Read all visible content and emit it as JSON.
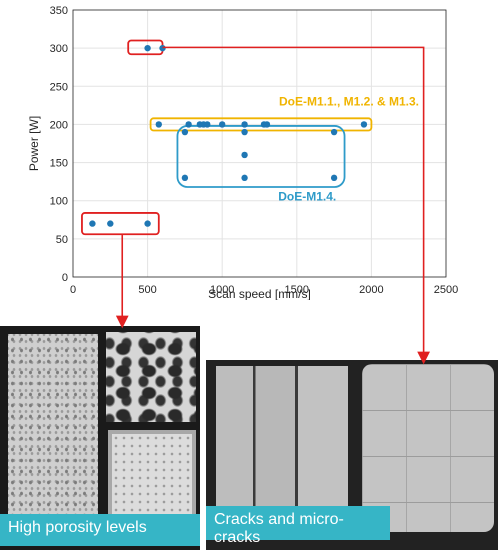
{
  "chart_data": {
    "type": "scatter",
    "xlabel": "Scan speed [mm/s]",
    "ylabel": "Power [W]",
    "xlim": [
      0,
      2500
    ],
    "ylim": [
      0,
      350
    ],
    "xticks": [
      0,
      500,
      1000,
      1500,
      2000,
      2500
    ],
    "yticks": [
      0,
      50,
      100,
      150,
      200,
      250,
      300,
      350
    ],
    "grid": true,
    "marker_color": "#1f77b4",
    "points": [
      {
        "x": 130,
        "y": 70
      },
      {
        "x": 250,
        "y": 70
      },
      {
        "x": 500,
        "y": 70
      },
      {
        "x": 500,
        "y": 300
      },
      {
        "x": 600,
        "y": 300
      },
      {
        "x": 575,
        "y": 200
      },
      {
        "x": 750,
        "y": 190
      },
      {
        "x": 775,
        "y": 200
      },
      {
        "x": 850,
        "y": 200
      },
      {
        "x": 875,
        "y": 200
      },
      {
        "x": 900,
        "y": 200
      },
      {
        "x": 1000,
        "y": 200
      },
      {
        "x": 1150,
        "y": 200
      },
      {
        "x": 1150,
        "y": 190
      },
      {
        "x": 1280,
        "y": 200
      },
      {
        "x": 1300,
        "y": 200
      },
      {
        "x": 1750,
        "y": 190
      },
      {
        "x": 1950,
        "y": 200
      },
      {
        "x": 750,
        "y": 130
      },
      {
        "x": 1150,
        "y": 160
      },
      {
        "x": 1150,
        "y": 130
      },
      {
        "x": 1750,
        "y": 130
      }
    ],
    "annotations": [
      {
        "text": "DoE-M1.1., M1.2. & M1.3.",
        "color": "#f0b400"
      },
      {
        "text": "DoE-M1.4.",
        "color": "#2e9bc9"
      }
    ]
  },
  "captions": {
    "left": "High porosity levels",
    "right": "Cracks and micro-cracks"
  },
  "colors": {
    "highlight_red": "#e02020",
    "doe_gold": "#f0b400",
    "doe_blue": "#2e9bc9",
    "caption_bg": "#36b5c6"
  }
}
